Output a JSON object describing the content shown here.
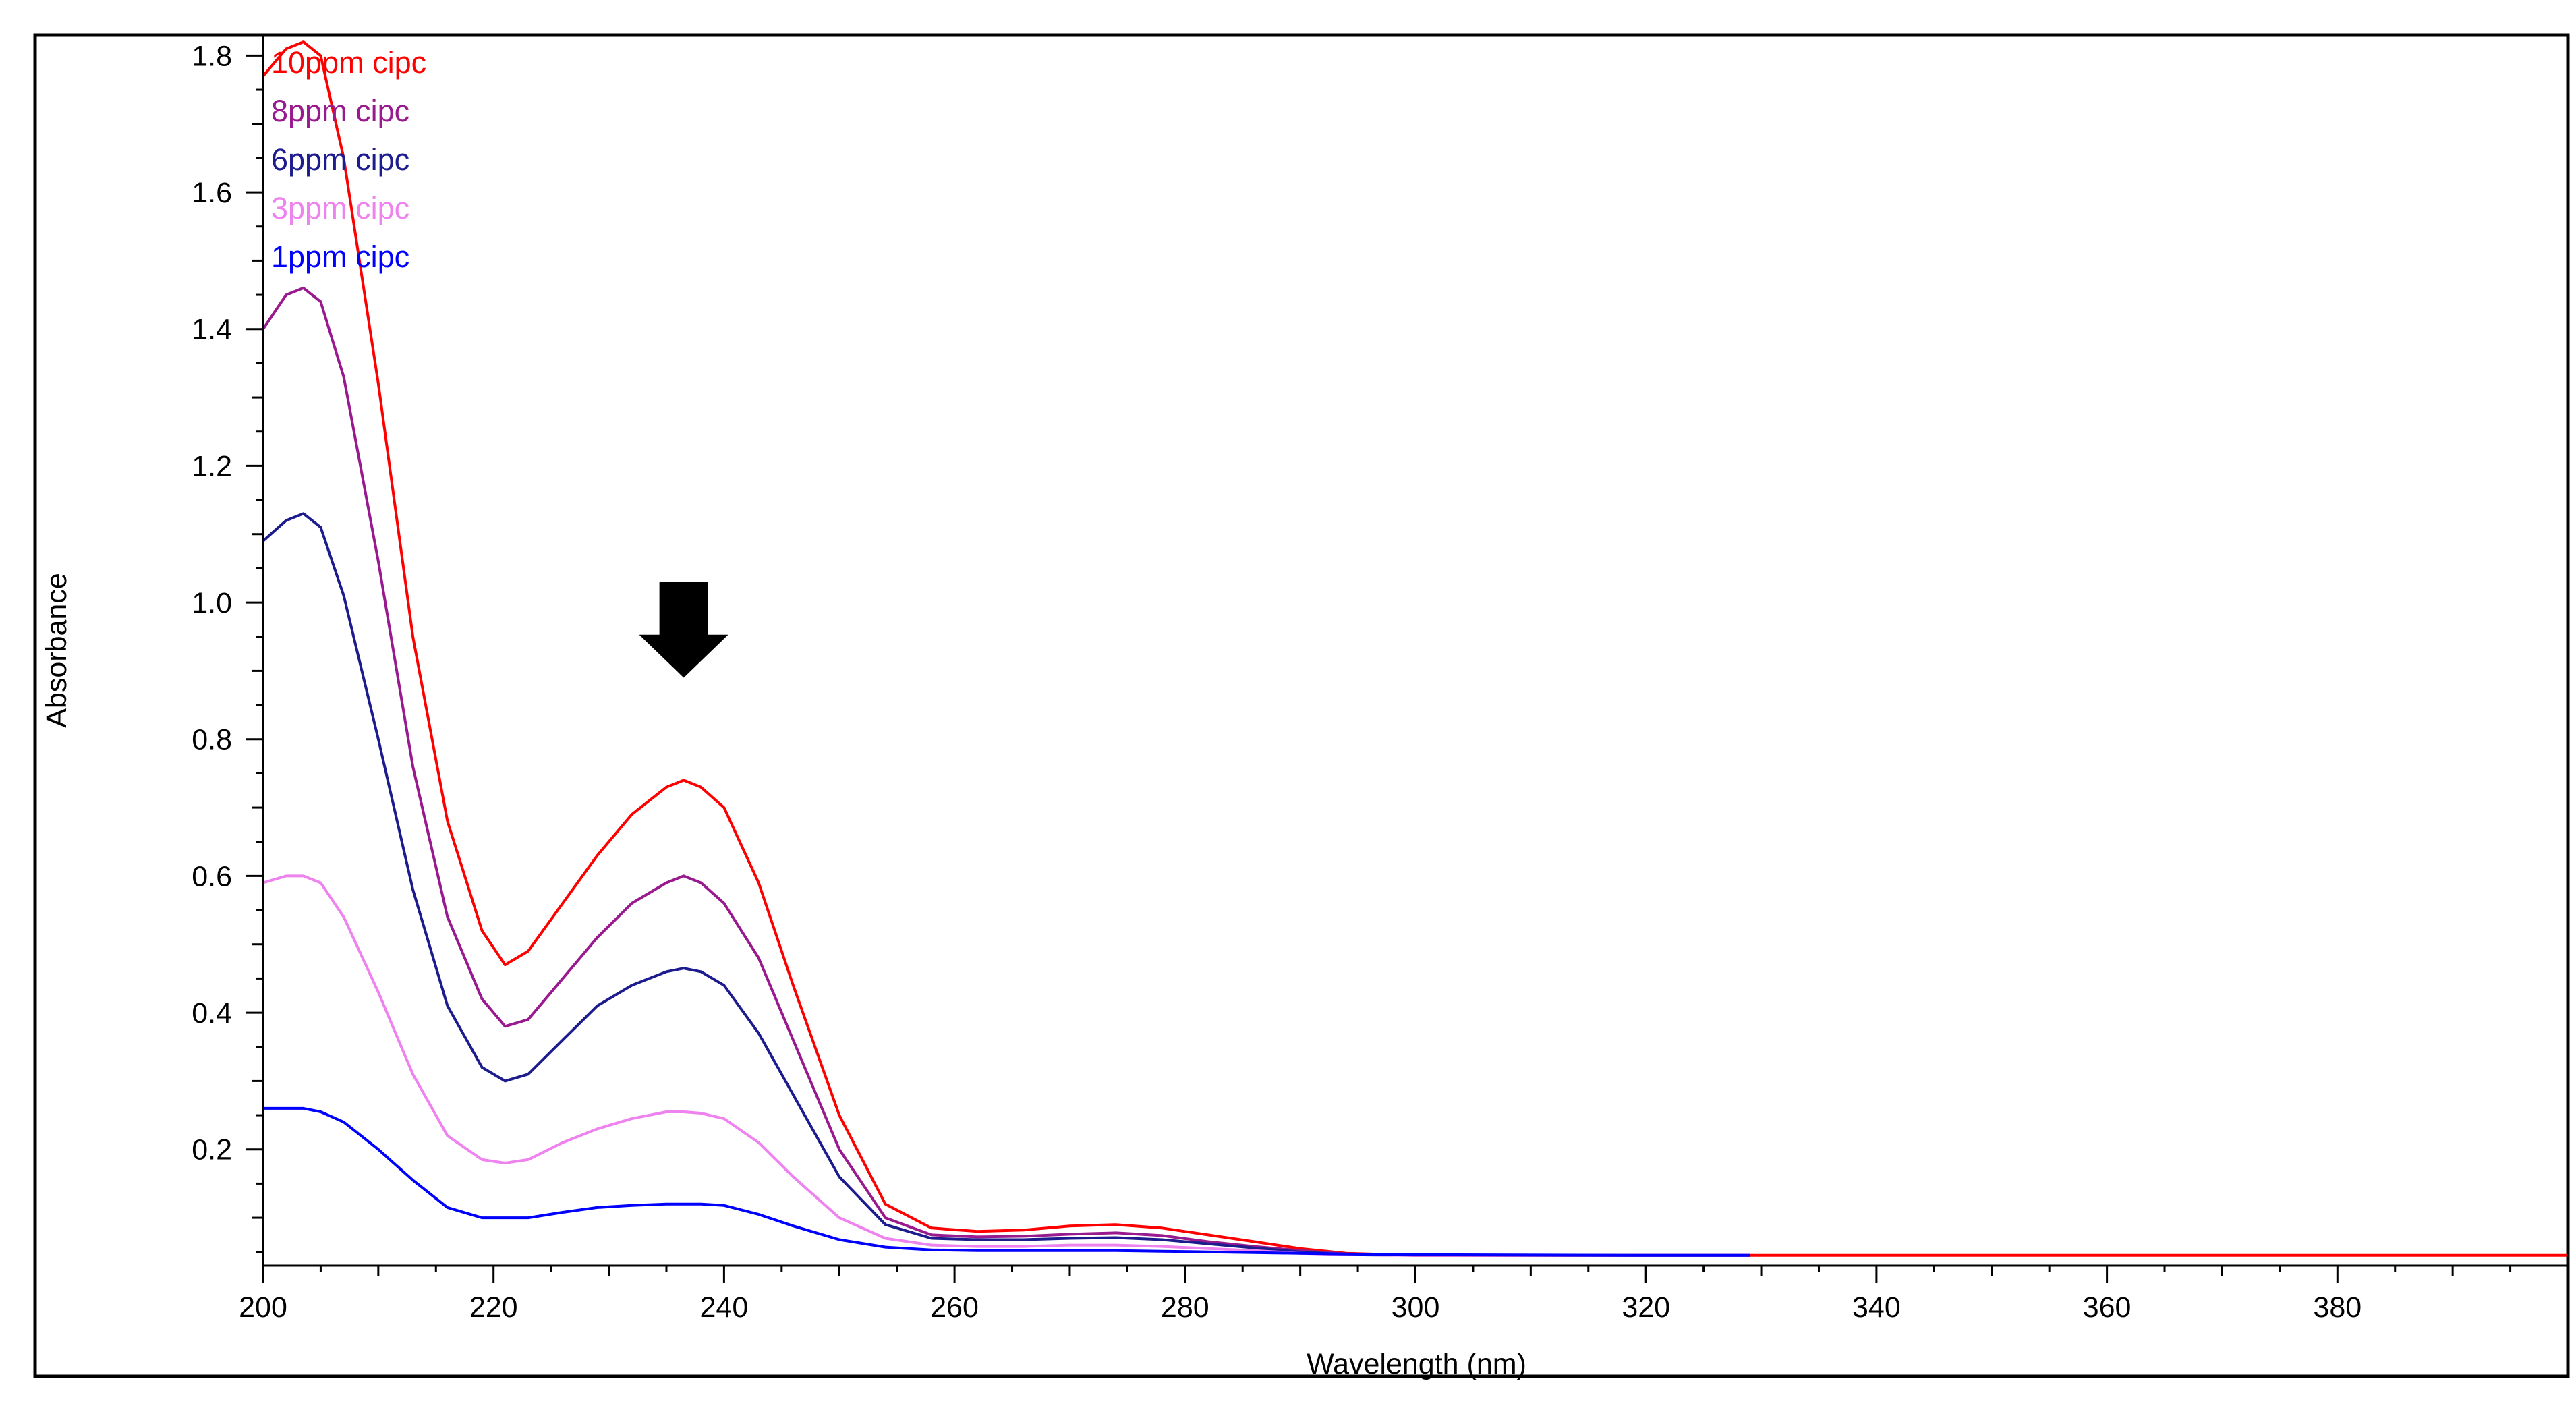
{
  "chart_data": {
    "type": "line",
    "title": "",
    "xlabel": "Wavelength (nm)",
    "ylabel": "Absorbance",
    "xlim": [
      200,
      400
    ],
    "ylim": [
      0.03,
      1.83
    ],
    "x_ticks": [
      200,
      220,
      240,
      260,
      280,
      300,
      320,
      340,
      360,
      380
    ],
    "y_ticks": [
      "0.2",
      "0.4",
      "0.6",
      "0.8",
      "1.0",
      "1.2",
      "1.4",
      "1.6",
      "1.8"
    ],
    "grid": false,
    "legend_position": "top-left",
    "annotation": {
      "type": "down-arrow",
      "x": 236.5,
      "y_top": 1.03,
      "y_bottom": 0.89,
      "color": "#000000"
    },
    "series": [
      {
        "name": "10ppm cipc",
        "color": "#ff0000",
        "x": [
          200,
          202,
          203.5,
          205,
          207,
          210,
          213,
          216,
          219,
          221,
          223,
          226,
          229,
          232,
          235,
          236.5,
          238,
          240,
          243,
          246,
          250,
          254,
          258,
          262,
          266,
          270,
          274,
          278,
          282,
          286,
          290,
          294,
          300,
          320,
          340,
          360,
          380,
          400
        ],
        "y": [
          1.77,
          1.81,
          1.82,
          1.8,
          1.65,
          1.32,
          0.95,
          0.68,
          0.52,
          0.47,
          0.49,
          0.56,
          0.63,
          0.69,
          0.73,
          0.74,
          0.73,
          0.7,
          0.59,
          0.44,
          0.25,
          0.12,
          0.085,
          0.08,
          0.082,
          0.088,
          0.09,
          0.085,
          0.075,
          0.065,
          0.055,
          0.048,
          0.045,
          0.045,
          0.045,
          0.045,
          0.045,
          0.045
        ]
      },
      {
        "name": "8ppm cipc",
        "color": "#99198e",
        "x": [
          200,
          202,
          203.5,
          205,
          207,
          210,
          213,
          216,
          219,
          221,
          223,
          226,
          229,
          232,
          235,
          236.5,
          238,
          240,
          243,
          246,
          250,
          254,
          258,
          262,
          266,
          270,
          274,
          278,
          282,
          286,
          290,
          294,
          300,
          320,
          329
        ],
        "y": [
          1.4,
          1.45,
          1.46,
          1.44,
          1.33,
          1.06,
          0.76,
          0.54,
          0.42,
          0.38,
          0.39,
          0.45,
          0.51,
          0.56,
          0.59,
          0.6,
          0.59,
          0.56,
          0.48,
          0.36,
          0.2,
          0.1,
          0.075,
          0.072,
          0.073,
          0.076,
          0.078,
          0.074,
          0.065,
          0.058,
          0.052,
          0.047,
          0.045,
          0.045,
          0.045
        ]
      },
      {
        "name": "6ppm cipc",
        "color": "#1c1c8f",
        "x": [
          200,
          202,
          203.5,
          205,
          207,
          210,
          213,
          216,
          219,
          221,
          223,
          226,
          229,
          232,
          235,
          236.5,
          238,
          240,
          243,
          246,
          250,
          254,
          258,
          262,
          266,
          270,
          274,
          278,
          282,
          286,
          290,
          294,
          300,
          320,
          329
        ],
        "y": [
          1.09,
          1.12,
          1.13,
          1.11,
          1.01,
          0.8,
          0.58,
          0.41,
          0.32,
          0.3,
          0.31,
          0.36,
          0.41,
          0.44,
          0.46,
          0.465,
          0.46,
          0.44,
          0.37,
          0.28,
          0.16,
          0.09,
          0.07,
          0.068,
          0.068,
          0.07,
          0.071,
          0.068,
          0.062,
          0.056,
          0.05,
          0.046,
          0.045,
          0.045,
          0.045
        ]
      },
      {
        "name": "3ppm cipc",
        "color": "#ee82ee",
        "x": [
          200,
          202,
          203.5,
          205,
          207,
          210,
          213,
          216,
          219,
          221,
          223,
          226,
          229,
          232,
          235,
          236.5,
          238,
          240,
          243,
          246,
          250,
          254,
          258,
          262,
          266,
          270,
          274,
          278,
          282,
          286,
          290,
          294,
          300,
          320,
          329
        ],
        "y": [
          0.59,
          0.6,
          0.6,
          0.59,
          0.54,
          0.43,
          0.31,
          0.22,
          0.185,
          0.18,
          0.185,
          0.21,
          0.23,
          0.245,
          0.255,
          0.255,
          0.253,
          0.245,
          0.21,
          0.16,
          0.1,
          0.07,
          0.06,
          0.058,
          0.058,
          0.06,
          0.06,
          0.058,
          0.055,
          0.052,
          0.048,
          0.046,
          0.045,
          0.045,
          0.045
        ]
      },
      {
        "name": "1ppm cipc",
        "color": "#0000ff",
        "x": [
          200,
          202,
          203.5,
          205,
          207,
          210,
          213,
          216,
          219,
          221,
          223,
          226,
          229,
          232,
          235,
          236.5,
          238,
          240,
          243,
          246,
          250,
          254,
          258,
          262,
          266,
          270,
          274,
          278,
          282,
          286,
          290,
          294,
          300,
          320,
          329
        ],
        "y": [
          0.26,
          0.26,
          0.26,
          0.255,
          0.24,
          0.2,
          0.155,
          0.115,
          0.1,
          0.1,
          0.1,
          0.108,
          0.115,
          0.118,
          0.12,
          0.12,
          0.12,
          0.118,
          0.105,
          0.088,
          0.068,
          0.057,
          0.053,
          0.052,
          0.052,
          0.052,
          0.052,
          0.051,
          0.05,
          0.049,
          0.048,
          0.047,
          0.046,
          0.045,
          0.045
        ]
      }
    ]
  }
}
